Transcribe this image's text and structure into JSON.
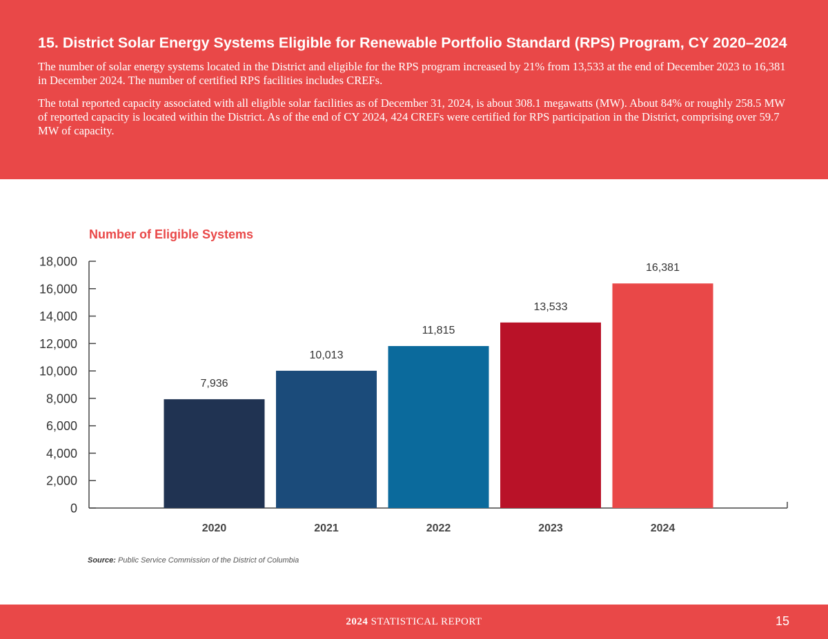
{
  "header": {
    "title": "15. District Solar Energy Systems Eligible for Renewable Portfolio Standard (RPS) Program, CY 2020–2024",
    "paragraph1": "The number of solar energy systems located in the District and eligible for the RPS program increased by 21% from 13,533 at the end of December 2023 to 16,381 in December 2024. The number of certified RPS facilities includes CREFs.",
    "paragraph2": "The total reported capacity associated with all eligible solar facilities as of December 31, 2024, is about 308.1 megawatts (MW). About 84% or roughly 258.5 MW of reported capacity is located within the District. As of the end of CY 2024, 424 CREFs were certified for RPS participation in the District, comprising over 59.7 MW of capacity."
  },
  "chart_data": {
    "type": "bar",
    "title": "Number of Eligible Systems",
    "categories": [
      "2020",
      "2021",
      "2022",
      "2023",
      "2024"
    ],
    "values": [
      7936,
      10013,
      11815,
      13533,
      16381
    ],
    "value_labels": [
      "7,936",
      "10,013",
      "11,815",
      "13,533",
      "16,381"
    ],
    "colors": [
      "#203352",
      "#1b4b7a",
      "#0b6a9c",
      "#b91228",
      "#e94848"
    ],
    "ylim": [
      0,
      18000
    ],
    "yticks": [
      0,
      2000,
      4000,
      6000,
      8000,
      10000,
      12000,
      14000,
      16000,
      18000
    ],
    "ytick_labels": [
      "0",
      "2,000",
      "4,000",
      "6,000",
      "8,000",
      "10,000",
      "12,000",
      "14,000",
      "16,000",
      "18,000"
    ],
    "xlabel": "",
    "ylabel": "",
    "grid": false
  },
  "source": {
    "label": "Source:",
    "text": "Public Service Commission of the District of Columbia"
  },
  "footer": {
    "report_year": "2024",
    "report_title": "STATISTICAL REPORT",
    "page_number": "15"
  }
}
